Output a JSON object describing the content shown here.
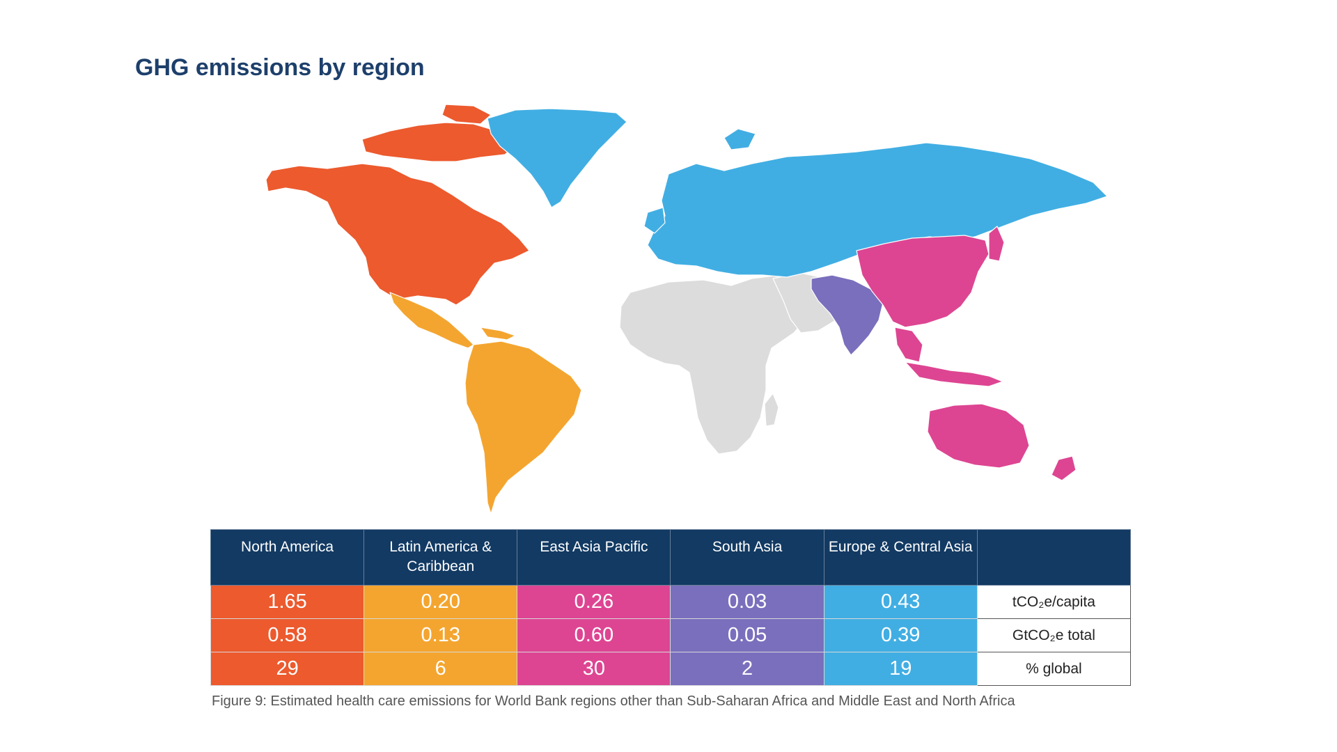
{
  "title": "GHG emissions by region",
  "colors": {
    "north_america": "#ec5a2e",
    "latin_america": "#f4a52f",
    "east_asia_pacific": "#dd4592",
    "south_asia": "#7a6fbd",
    "europe_central_asia": "#41aee3",
    "not_covered": "#dcdcdc",
    "header": "#123a63"
  },
  "table": {
    "columns": [
      "North America",
      "Latin America & Caribbean",
      "East Asia Pacific",
      "South Asia",
      "Europe & Central Asia",
      ""
    ],
    "rows": [
      {
        "values": [
          "1.65",
          "0.20",
          "0.26",
          "0.03",
          "0.43"
        ],
        "unit": "tCO₂e/capita"
      },
      {
        "values": [
          "0.58",
          "0.13",
          "0.60",
          "0.05",
          "0.39"
        ],
        "unit": "GtCO₂e total"
      },
      {
        "values": [
          "29",
          "6",
          "30",
          "2",
          "19"
        ],
        "unit": "% global"
      }
    ]
  },
  "caption": "Figure 9: Estimated health care emissions for World Bank regions other than Sub-Saharan Africa and Middle East and North Africa"
}
